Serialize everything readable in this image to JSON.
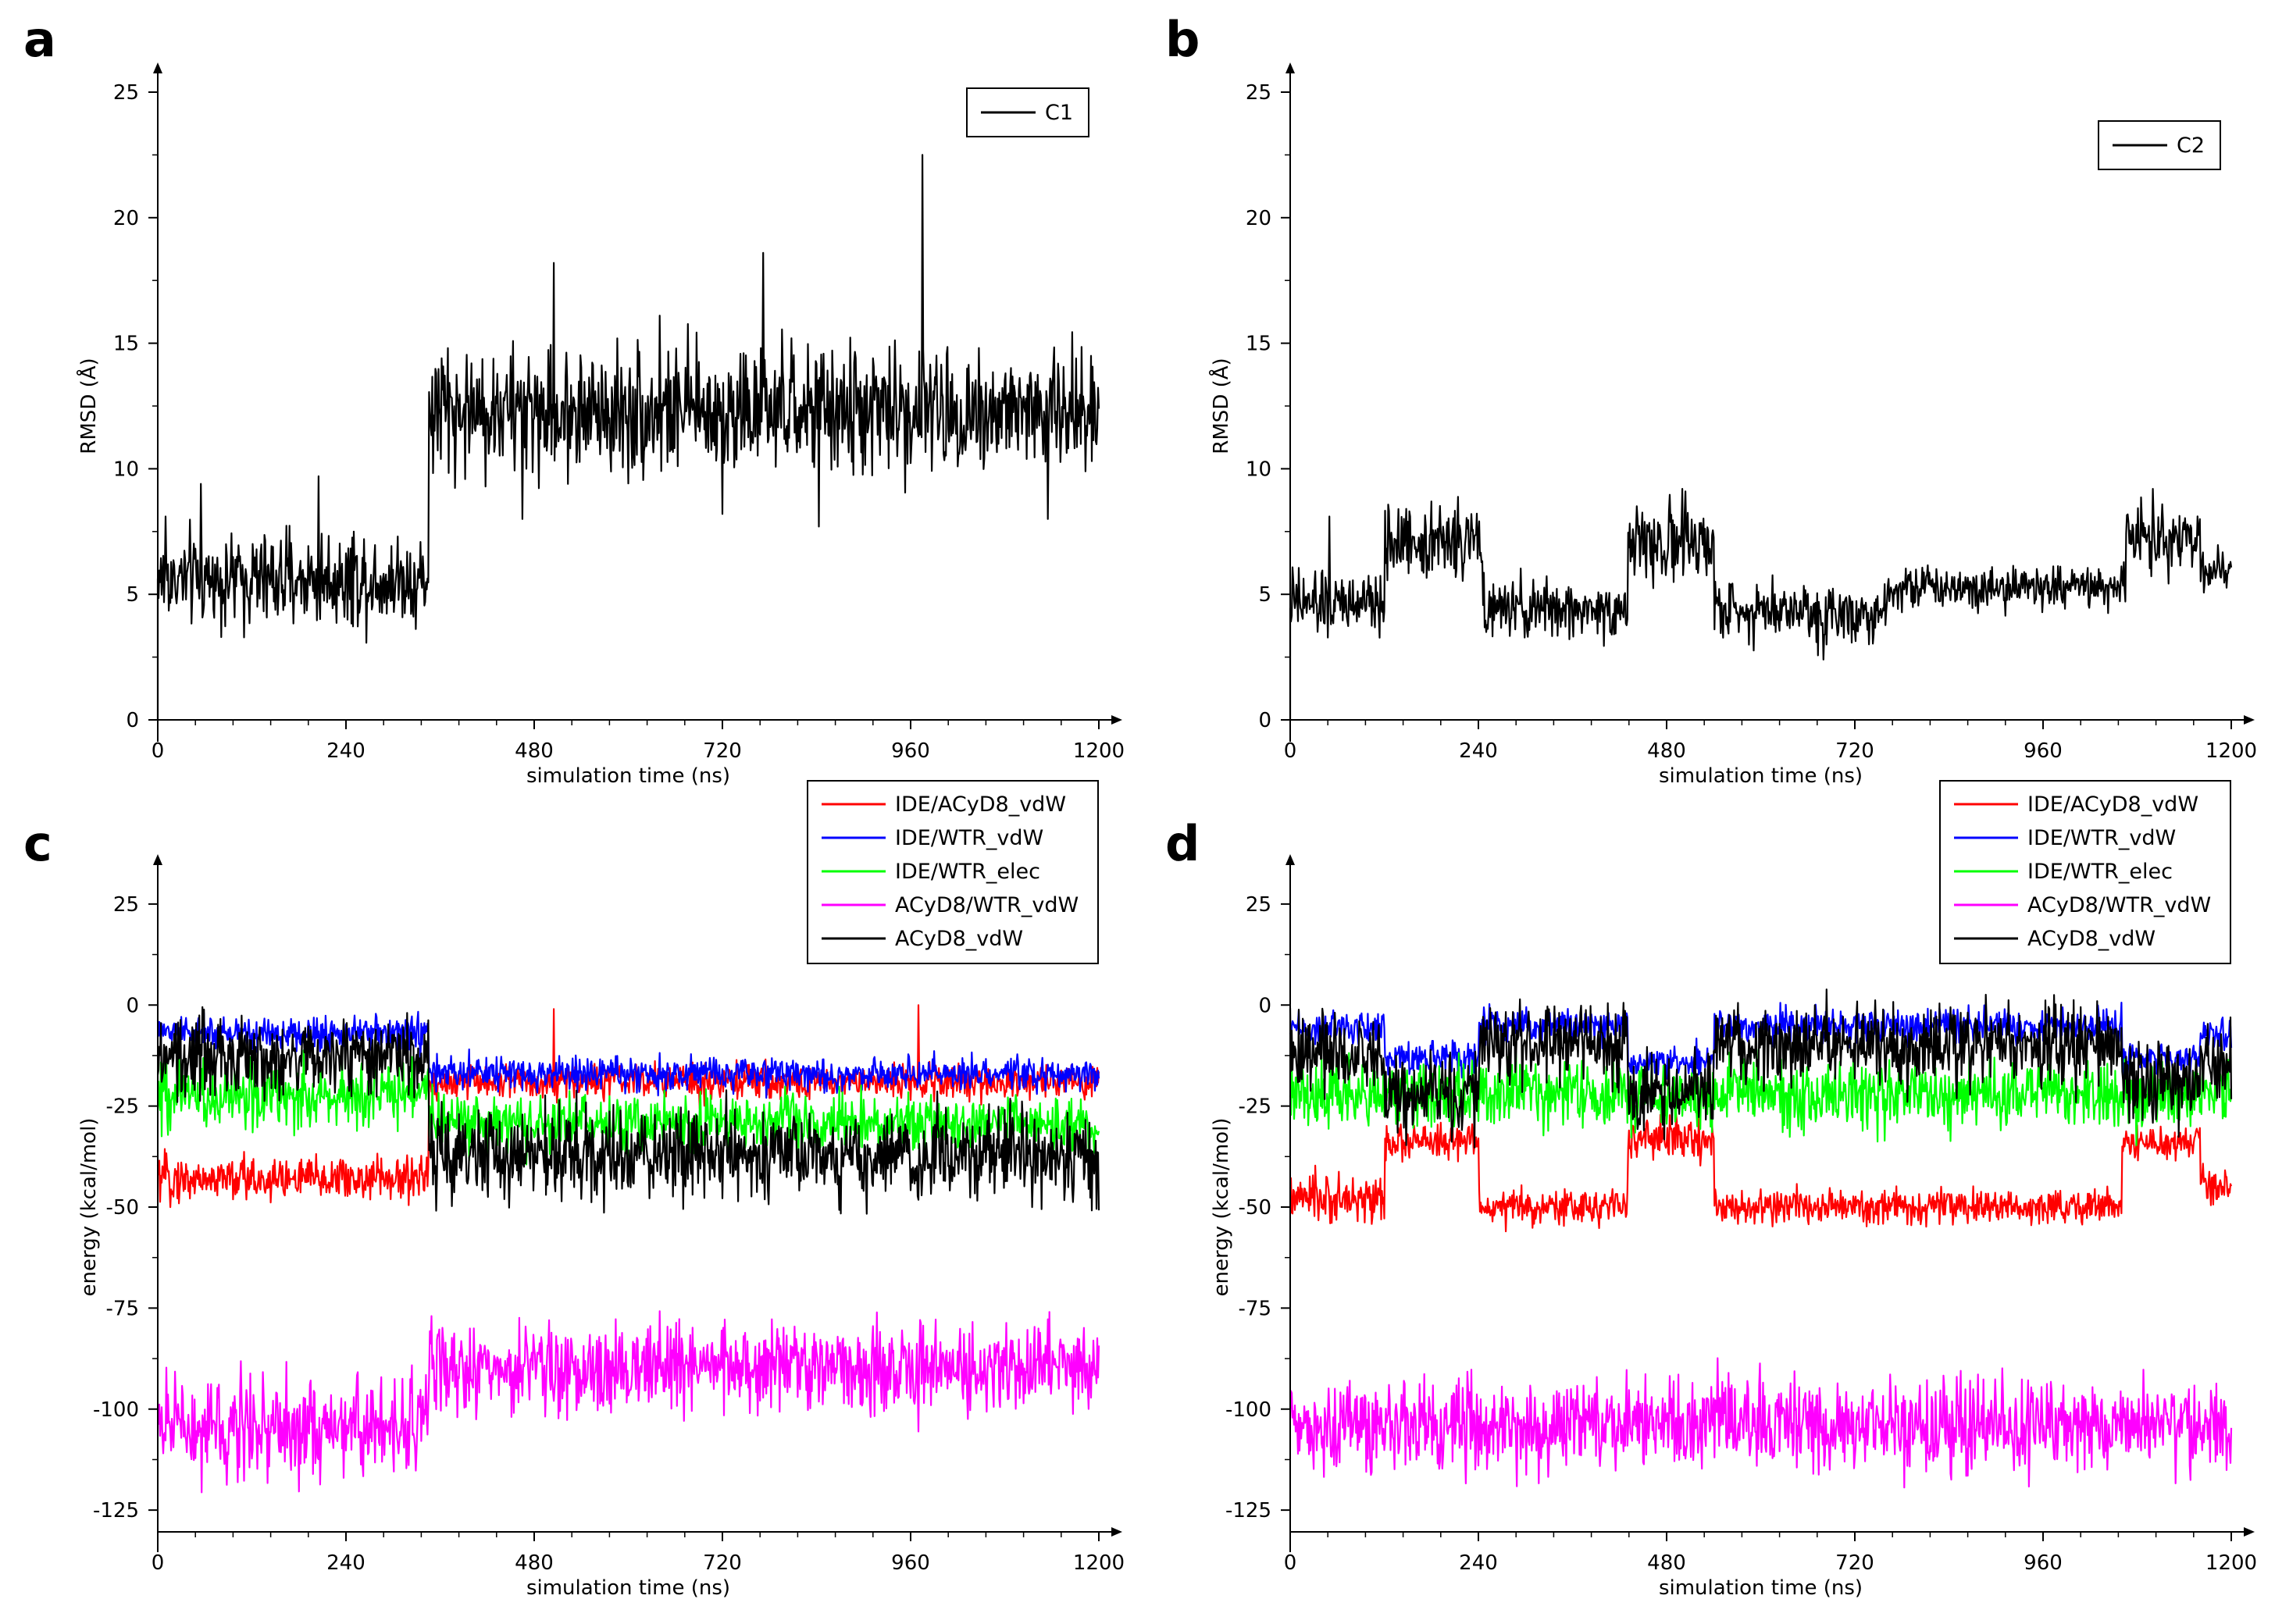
{
  "figure": {
    "panels": [
      "a",
      "b",
      "c",
      "d"
    ]
  },
  "chart_data": [
    {
      "panel": "a",
      "type": "line",
      "title": "",
      "xlabel": "simulation time (ns)",
      "ylabel": "RMSD (Å)",
      "xlim": [
        0,
        1200
      ],
      "ylim": [
        0,
        25
      ],
      "xticks": [
        0,
        240,
        480,
        720,
        960,
        1200
      ],
      "yticks": [
        0,
        5,
        10,
        15,
        20,
        25
      ],
      "legend_position": "top-right",
      "colors": {
        "C1": "#000000"
      },
      "series": [
        {
          "name": "C1",
          "color": "#000000",
          "segments": [
            {
              "x0": 0,
              "x1": 345,
              "mean": 5.6,
              "noise": 1.3,
              "spikes": [
                [
                  10,
                  8.1
                ],
                [
                  55,
                  9.4
                ],
                [
                  205,
                  9.7
                ],
                [
                  250,
                  7.5
                ]
              ]
            },
            {
              "x0": 345,
              "x1": 1200,
              "mean": 12.3,
              "noise": 1.8,
              "spikes": [
                [
                  362,
                  14.4
                ],
                [
                  400,
                  14.2
                ],
                [
                  465,
                  8.0
                ],
                [
                  505,
                  18.2
                ],
                [
                  640,
                  16.1
                ],
                [
                  720,
                  8.2
                ],
                [
                  772,
                  18.6
                ],
                [
                  843,
                  7.7
                ],
                [
                  975,
                  22.5
                ],
                [
                  1135,
                  8.0
                ],
                [
                  1190,
                  14.5
                ]
              ]
            }
          ],
          "start": [
            0,
            0
          ]
        }
      ]
    },
    {
      "panel": "b",
      "type": "line",
      "title": "",
      "xlabel": "simulation time (ns)",
      "ylabel": "RMSD (Å)",
      "xlim": [
        0,
        1200
      ],
      "ylim": [
        0,
        25
      ],
      "xticks": [
        0,
        240,
        480,
        720,
        960,
        1200
      ],
      "yticks": [
        0,
        5,
        10,
        15,
        20,
        25
      ],
      "legend_position": "top-right",
      "colors": {
        "C2": "#000000"
      },
      "series": [
        {
          "name": "C2",
          "color": "#000000",
          "segments": [
            {
              "x0": 0,
              "x1": 120,
              "mean": 4.6,
              "noise": 0.9,
              "spikes": [
                [
                  50,
                  8.1
                ]
              ]
            },
            {
              "x0": 120,
              "x1": 245,
              "mean": 7.1,
              "noise": 1.0,
              "spikes": [
                [
                  180,
                  8.7
                ]
              ]
            },
            {
              "x0": 245,
              "x1": 430,
              "mean": 4.4,
              "noise": 0.8,
              "spikes": []
            },
            {
              "x0": 430,
              "x1": 540,
              "mean": 7.0,
              "noise": 1.1,
              "spikes": [
                [
                  500,
                  9.2
                ]
              ]
            },
            {
              "x0": 540,
              "x1": 660,
              "mean": 4.4,
              "noise": 0.8,
              "spikes": [
                [
                  680,
                  2.4
                ]
              ]
            },
            {
              "x0": 660,
              "x1": 760,
              "mean": 4.3,
              "noise": 0.9,
              "spikes": []
            },
            {
              "x0": 760,
              "x1": 1065,
              "mean": 5.3,
              "noise": 0.6,
              "spikes": []
            },
            {
              "x0": 1065,
              "x1": 1160,
              "mean": 7.3,
              "noise": 0.9,
              "spikes": [
                [
                  1100,
                  9.2
                ]
              ]
            },
            {
              "x0": 1160,
              "x1": 1200,
              "mean": 5.8,
              "noise": 0.6,
              "spikes": []
            }
          ],
          "start": [
            0,
            0
          ]
        }
      ]
    },
    {
      "panel": "c",
      "type": "line",
      "title": "",
      "xlabel": "simulation time (ns)",
      "ylabel": "energy (kcal/mol)",
      "xlim": [
        0,
        1200
      ],
      "ylim": [
        -130,
        30
      ],
      "xticks": [
        0,
        240,
        480,
        720,
        960,
        1200
      ],
      "yticks": [
        -125,
        -100,
        -75,
        -50,
        -25,
        0,
        25
      ],
      "legend_position": "top-right",
      "series": [
        {
          "name": "IDE/ACyD8_vdW",
          "color": "#ff0000",
          "segments": [
            {
              "x0": 0,
              "x1": 345,
              "mean": -43,
              "noise": 4,
              "spikes": []
            },
            {
              "x0": 345,
              "x1": 1200,
              "mean": -19,
              "noise": 3,
              "spikes": [
                [
                  505,
                  -1
                ],
                [
                  970,
                  0
                ]
              ]
            }
          ]
        },
        {
          "name": "IDE/WTR_vdW",
          "color": "#0000ff",
          "segments": [
            {
              "x0": 0,
              "x1": 345,
              "mean": -7,
              "noise": 3,
              "spikes": []
            },
            {
              "x0": 345,
              "x1": 1200,
              "mean": -17,
              "noise": 3,
              "spikes": []
            }
          ]
        },
        {
          "name": "IDE/WTR_elec",
          "color": "#00ff00",
          "segments": [
            {
              "x0": 0,
              "x1": 345,
              "mean": -22,
              "noise": 6,
              "spikes": []
            },
            {
              "x0": 345,
              "x1": 1200,
              "mean": -29,
              "noise": 5,
              "spikes": []
            }
          ]
        },
        {
          "name": "ACyD8/WTR_vdW",
          "color": "#ff00ff",
          "segments": [
            {
              "x0": 0,
              "x1": 345,
              "mean": -104,
              "noise": 9,
              "spikes": []
            },
            {
              "x0": 345,
              "x1": 1200,
              "mean": -90,
              "noise": 8,
              "spikes": []
            }
          ]
        },
        {
          "name": "ACyD8_vdW",
          "color": "#000000",
          "segments": [
            {
              "x0": 0,
              "x1": 345,
              "mean": -13,
              "noise": 7,
              "spikes": []
            },
            {
              "x0": 345,
              "x1": 1200,
              "mean": -37,
              "noise": 8,
              "spikes": []
            }
          ]
        }
      ]
    },
    {
      "panel": "d",
      "type": "line",
      "title": "",
      "xlabel": "simulation time (ns)",
      "ylabel": "energy (kcal/mol)",
      "xlim": [
        0,
        1200
      ],
      "ylim": [
        -130,
        30
      ],
      "xticks": [
        0,
        240,
        480,
        720,
        960,
        1200
      ],
      "yticks": [
        -125,
        -100,
        -75,
        -50,
        -25,
        0,
        25
      ],
      "legend_position": "top-right",
      "series": [
        {
          "name": "IDE/ACyD8_vdW",
          "color": "#ff0000",
          "segments": [
            {
              "x0": 0,
              "x1": 120,
              "mean": -48,
              "noise": 4,
              "spikes": []
            },
            {
              "x0": 120,
              "x1": 240,
              "mean": -34,
              "noise": 3,
              "spikes": []
            },
            {
              "x0": 240,
              "x1": 430,
              "mean": -50,
              "noise": 3,
              "spikes": []
            },
            {
              "x0": 430,
              "x1": 540,
              "mean": -33,
              "noise": 4,
              "spikes": []
            },
            {
              "x0": 540,
              "x1": 1060,
              "mean": -50,
              "noise": 3,
              "spikes": []
            },
            {
              "x0": 1060,
              "x1": 1160,
              "mean": -34,
              "noise": 3,
              "spikes": []
            },
            {
              "x0": 1160,
              "x1": 1200,
              "mean": -45,
              "noise": 3,
              "spikes": []
            }
          ]
        },
        {
          "name": "IDE/WTR_vdW",
          "color": "#0000ff",
          "segments": [
            {
              "x0": 0,
              "x1": 120,
              "mean": -6,
              "noise": 3,
              "spikes": []
            },
            {
              "x0": 120,
              "x1": 240,
              "mean": -13,
              "noise": 3,
              "spikes": []
            },
            {
              "x0": 240,
              "x1": 430,
              "mean": -5,
              "noise": 3,
              "spikes": []
            },
            {
              "x0": 430,
              "x1": 540,
              "mean": -14,
              "noise": 3,
              "spikes": []
            },
            {
              "x0": 540,
              "x1": 1060,
              "mean": -5,
              "noise": 3,
              "spikes": []
            },
            {
              "x0": 1060,
              "x1": 1160,
              "mean": -13,
              "noise": 3,
              "spikes": []
            },
            {
              "x0": 1160,
              "x1": 1200,
              "mean": -7,
              "noise": 3,
              "spikes": []
            }
          ]
        },
        {
          "name": "IDE/WTR_elec",
          "color": "#00ff00",
          "segments": [
            {
              "x0": 0,
              "x1": 1200,
              "mean": -22,
              "noise": 6,
              "spikes": []
            }
          ]
        },
        {
          "name": "ACyD8/WTR_vdW",
          "color": "#ff00ff",
          "segments": [
            {
              "x0": 0,
              "x1": 1200,
              "mean": -104,
              "noise": 8,
              "spikes": []
            }
          ]
        },
        {
          "name": "ACyD8_vdW",
          "color": "#000000",
          "segments": [
            {
              "x0": 0,
              "x1": 120,
              "mean": -12,
              "noise": 7,
              "spikes": []
            },
            {
              "x0": 120,
              "x1": 240,
              "mean": -22,
              "noise": 7,
              "spikes": []
            },
            {
              "x0": 240,
              "x1": 430,
              "mean": -9,
              "noise": 7,
              "spikes": []
            },
            {
              "x0": 430,
              "x1": 540,
              "mean": -22,
              "noise": 7,
              "spikes": []
            },
            {
              "x0": 540,
              "x1": 1060,
              "mean": -10,
              "noise": 7,
              "spikes": []
            },
            {
              "x0": 1060,
              "x1": 1160,
              "mean": -20,
              "noise": 7,
              "spikes": []
            },
            {
              "x0": 1160,
              "x1": 1200,
              "mean": -14,
              "noise": 7,
              "spikes": []
            }
          ]
        }
      ]
    }
  ]
}
